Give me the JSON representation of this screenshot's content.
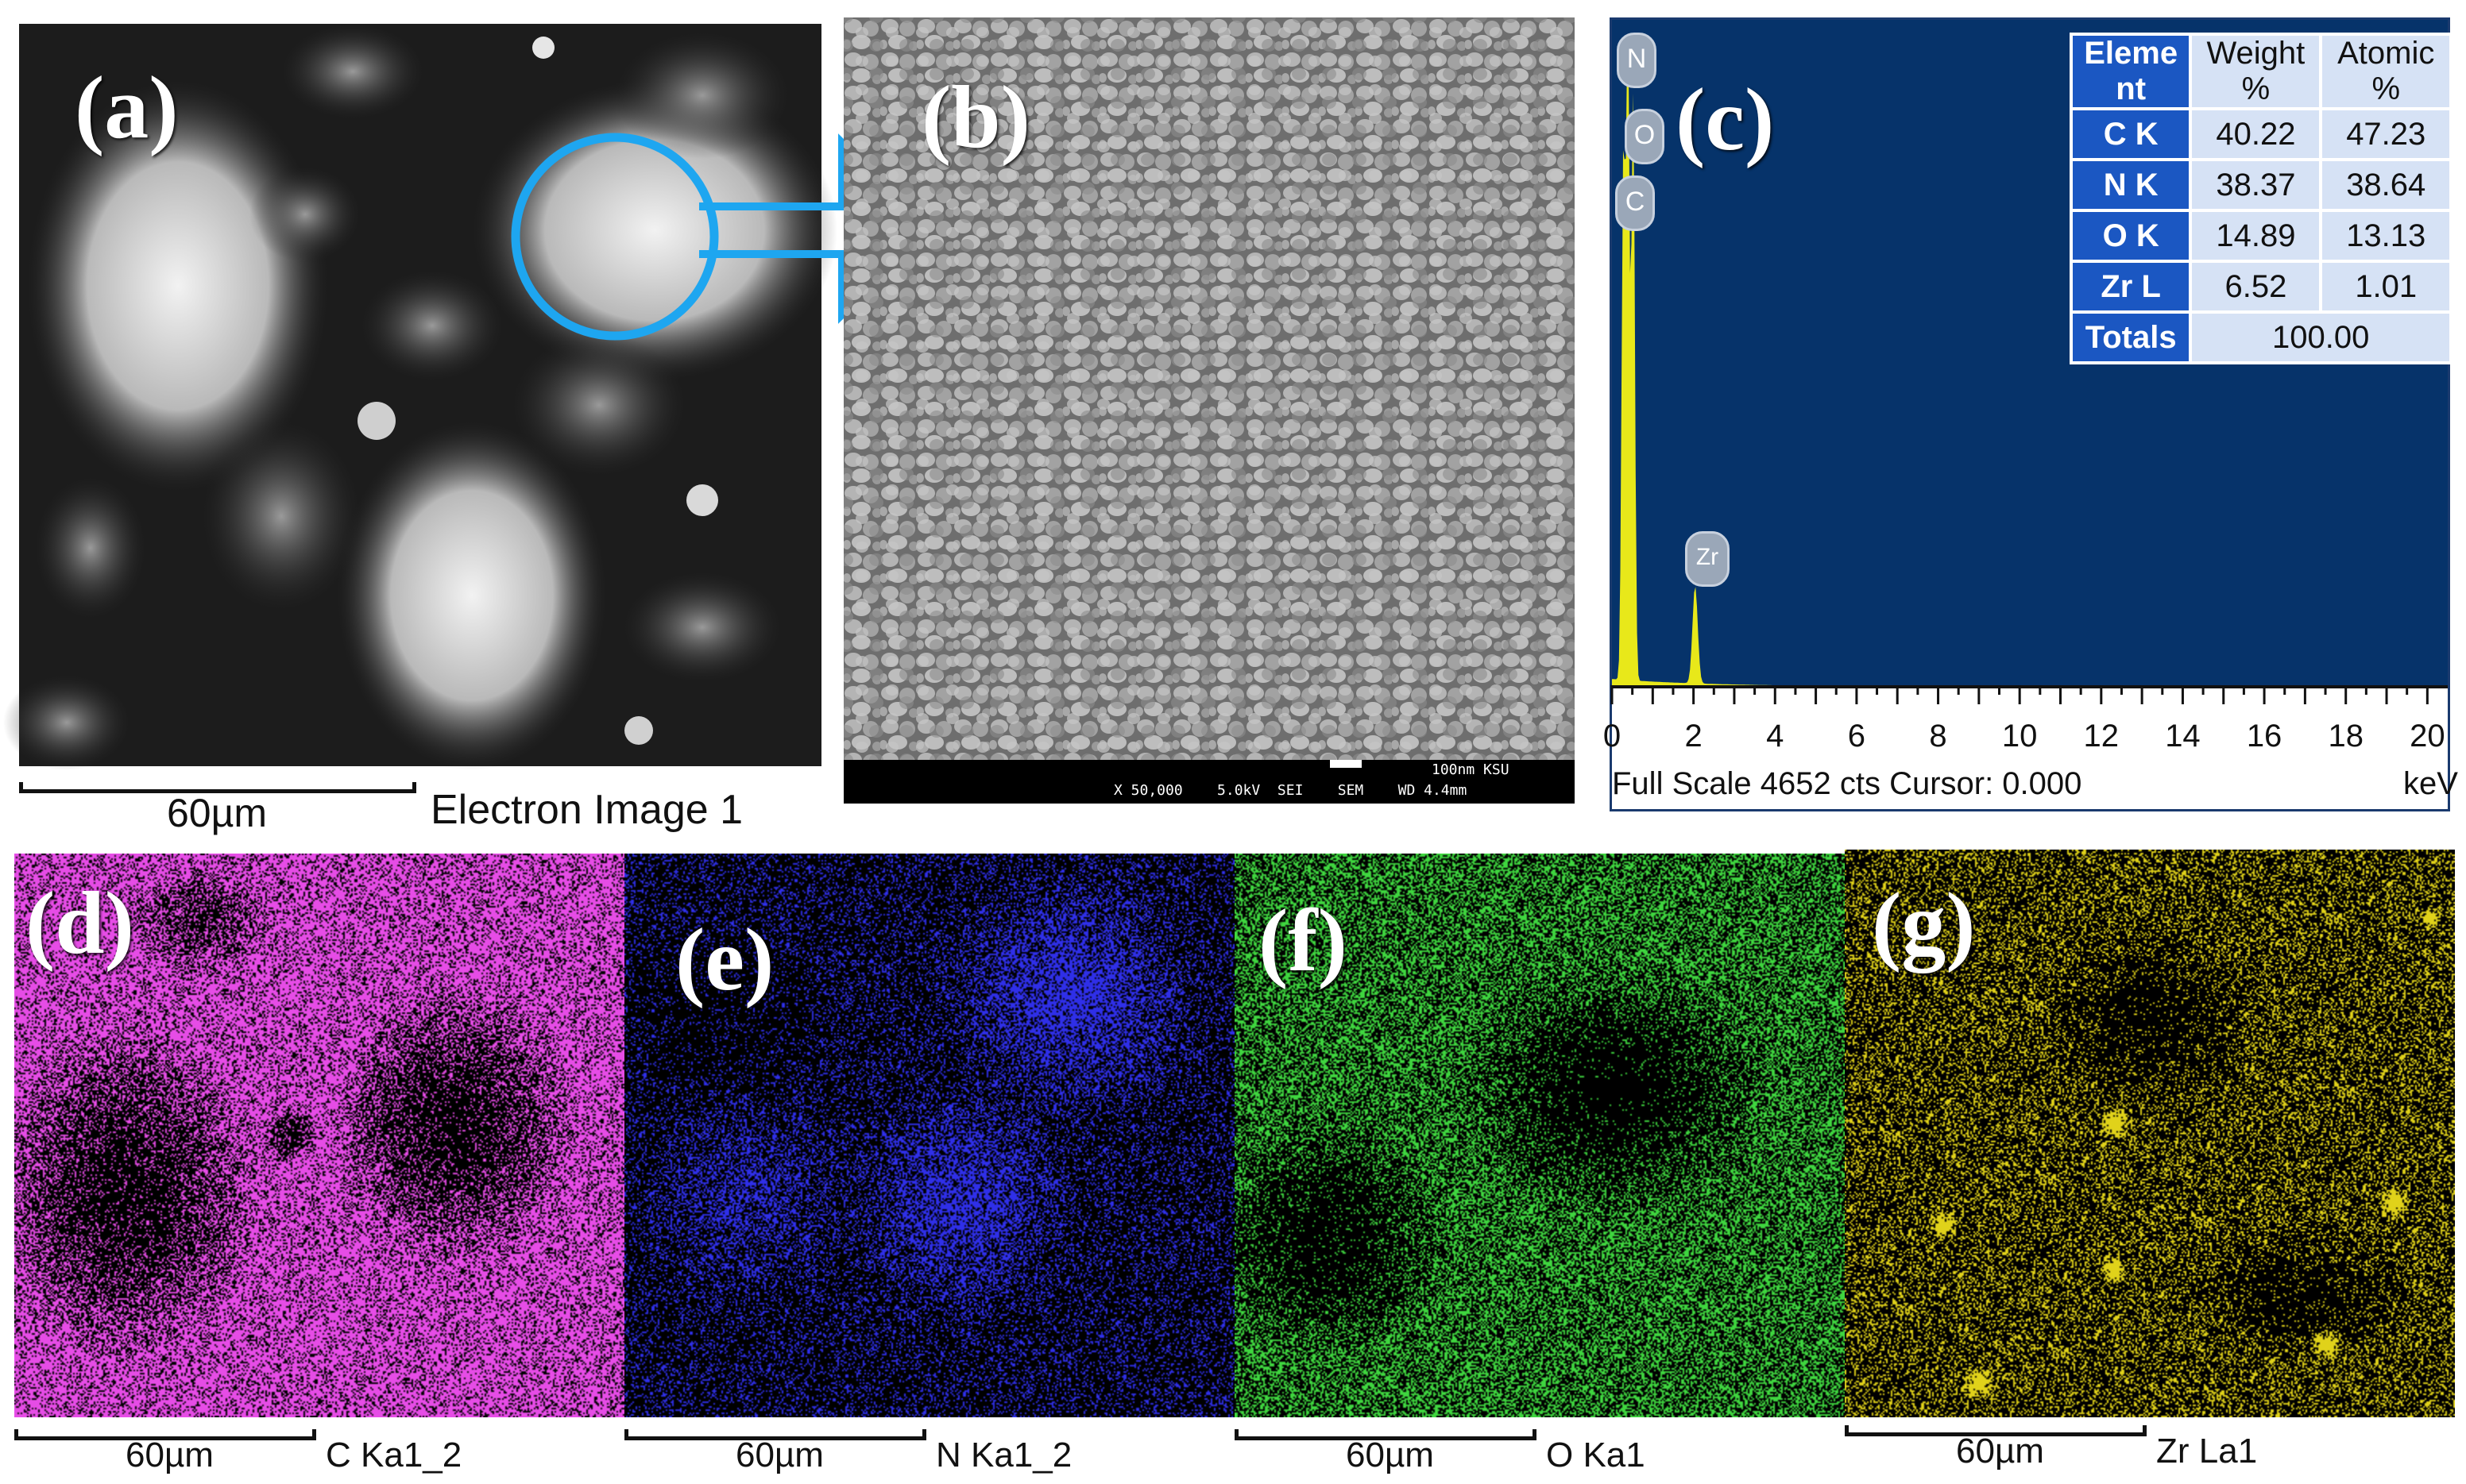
{
  "panels": {
    "a": {
      "letter": "(a)",
      "scale": "60µm",
      "caption": "Electron Image 1"
    },
    "b": {
      "letter": "(b)",
      "info": "100nm KSU",
      "bar_info": "X 50,000    5.0kV  SEI    SEM    WD 4.4mm"
    },
    "c": {
      "letter": "(c)"
    },
    "d": {
      "letter": "(d)",
      "scale": "60µm",
      "caption": "C Ka1_2",
      "color": "#e64ce6"
    },
    "e": {
      "letter": "(e)",
      "scale": "60µm",
      "caption": "N Ka1_2",
      "color": "#2f2fe8"
    },
    "f": {
      "letter": "(f)",
      "scale": "60µm",
      "caption": "O Ka1",
      "color": "#3fd63f"
    },
    "g": {
      "letter": "(g)",
      "scale": "60µm",
      "caption": "Zr La1",
      "color": "#e0d21a"
    }
  },
  "edx_table": {
    "headers": [
      "Eleme\nnt",
      "Weight\n%",
      "Atomic\n%"
    ],
    "header_parts": [
      [
        "Eleme",
        "nt"
      ],
      [
        "Weight",
        "%"
      ],
      [
        "Atomic",
        "%"
      ]
    ],
    "rows": [
      {
        "element": "C K",
        "weight": "40.22",
        "atomic": "47.23"
      },
      {
        "element": "N K",
        "weight": "38.37",
        "atomic": "38.64"
      },
      {
        "element": "O K",
        "weight": "14.89",
        "atomic": "13.13"
      },
      {
        "element": "Zr L",
        "weight": "6.52",
        "atomic": "1.01"
      }
    ],
    "totals_label": "Totals",
    "totals_value": "100.00"
  },
  "chart_data": {
    "type": "line",
    "x_ticks": [
      "0",
      "2",
      "4",
      "6",
      "8",
      "10",
      "12",
      "14",
      "16",
      "18",
      "20"
    ],
    "xlim": [
      0,
      20.5
    ],
    "xunit": "keV",
    "footer": "Full Scale 4652 cts Cursor: 0.000",
    "peaks": [
      {
        "label": "N",
        "x": 0.39,
        "height_fraction": 1.0
      },
      {
        "label": "O",
        "x": 0.52,
        "height_fraction": 0.9
      },
      {
        "label": "C",
        "x": 0.28,
        "height_fraction": 0.8
      },
      {
        "label": "Zr",
        "x": 2.04,
        "height_fraction": 0.15
      }
    ],
    "background_color": "#06336a",
    "line_color": "#e8e81a"
  }
}
